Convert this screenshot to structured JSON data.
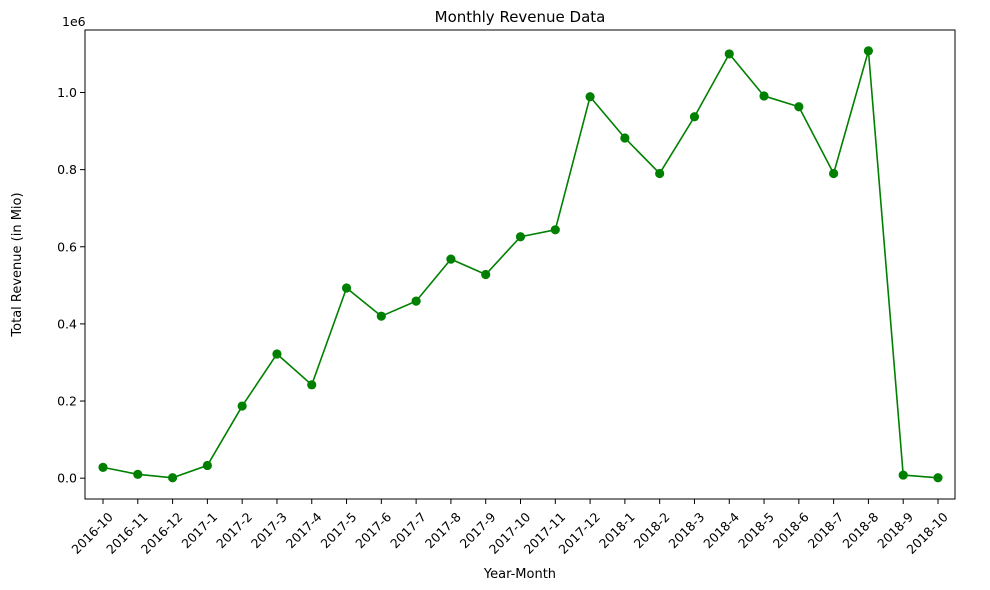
{
  "chart_data": {
    "type": "line",
    "title": "Monthly Revenue Data",
    "xlabel": "Year-Month",
    "ylabel": "Total Revenue (in Mio)",
    "y_offset_label": "1e6",
    "categories": [
      "2016-10",
      "2016-11",
      "2016-12",
      "2017-1",
      "2017-2",
      "2017-3",
      "2017-4",
      "2017-5",
      "2017-6",
      "2017-7",
      "2017-8",
      "2017-9",
      "2017-10",
      "2017-11",
      "2017-12",
      "2018-1",
      "2018-2",
      "2018-3",
      "2018-4",
      "2018-5",
      "2018-6",
      "2018-7",
      "2018-8",
      "2018-9",
      "2018-10"
    ],
    "values": [
      0.028,
      0.01,
      0.001,
      0.033,
      0.187,
      0.322,
      0.242,
      0.493,
      0.42,
      0.459,
      0.568,
      0.528,
      0.626,
      0.644,
      0.989,
      0.882,
      0.79,
      0.937,
      1.1,
      0.991,
      0.963,
      0.79,
      1.108,
      0.008,
      0.001
    ],
    "ylim": [
      -0.054,
      1.162
    ],
    "yticks": [
      0.0,
      0.2,
      0.4,
      0.6,
      0.8,
      1.0
    ],
    "ytick_labels": [
      "0.0",
      "0.2",
      "0.4",
      "0.6",
      "0.8",
      "1.0"
    ],
    "color": "#008000",
    "grid": false
  }
}
